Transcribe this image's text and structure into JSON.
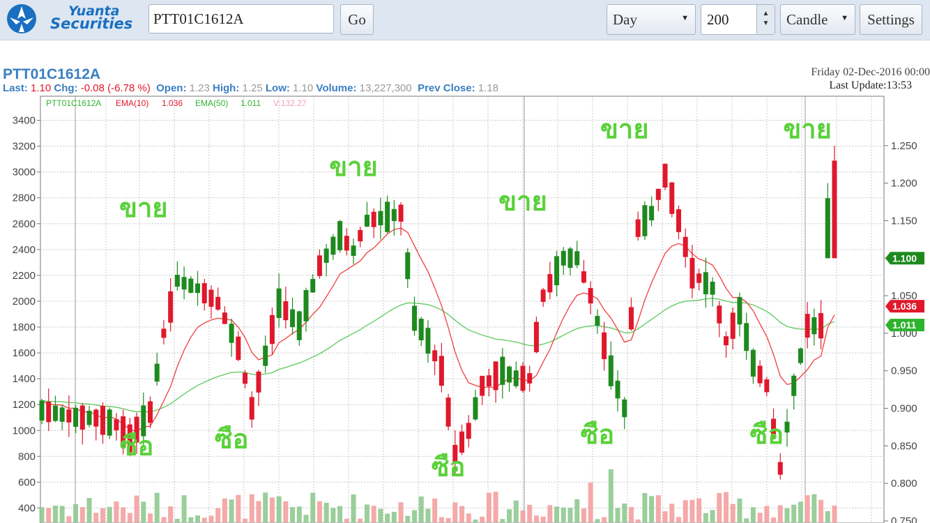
{
  "toolbar": {
    "logo_line1": "Yuanta",
    "logo_line2": "Securities",
    "symbol_value": "PTT01C1612A",
    "go_label": "Go",
    "period_value": "Day",
    "bars_value": "200",
    "chart_type_value": "Candle",
    "settings_label": "Settings",
    "brand_color": "#1a6fc0"
  },
  "header": {
    "symbol": "PTT01C1612A",
    "last_label": "Last:",
    "last_value": "1.10",
    "chg_label": "Chg:",
    "chg_value": "-0.08 (-6.78 %)",
    "open_label": "Open:",
    "open_value": "1.23",
    "high_label": "High:",
    "high_value": "1.25",
    "low_label": "Low:",
    "low_value": "1.10",
    "volume_label": "Volume:",
    "volume_value": "13,227,300",
    "prev_label": "Prev Close:",
    "prev_value": "1.18",
    "date": "Friday 02-Dec-2016 00:00",
    "last_update": "Last Update:13:53"
  },
  "chart_data": {
    "type": "candlestick",
    "legend": {
      "symbol": "PTT01C1612A",
      "ema10_label": "EMA(10)",
      "ema10_value": "1.036",
      "ema50_label": "EMA(50)",
      "ema50_value": "1.011",
      "vol_label": "V:132.27"
    },
    "left_axis": {
      "ticks": [
        "3400",
        "3200",
        "3000",
        "2800",
        "2600",
        "2400",
        "2200",
        "2000",
        "1800",
        "1600",
        "1400",
        "1200",
        "1000",
        "800",
        "600",
        "400"
      ]
    },
    "right_axis": {
      "ticks": [
        "1.250",
        "1.200",
        "1.150",
        "1.100",
        "1.050",
        "1.000",
        "0.950",
        "0.900",
        "0.850",
        "0.800",
        "0.750"
      ],
      "ylim": [
        0.75,
        1.3
      ]
    },
    "price_labels": [
      {
        "text": "1.100",
        "value": 1.1,
        "color": "#1e8a1e"
      },
      {
        "text": "1.036",
        "value": 1.036,
        "color": "#e0182c"
      },
      {
        "text": "1.011",
        "value": 1.011,
        "color": "#2fb32f"
      }
    ],
    "left_ylim": [
      300,
      3500
    ],
    "annotations": [
      {
        "text": "ขาย",
        "candle": 15,
        "price": 1.155
      },
      {
        "text": "ขาย",
        "candle": 46,
        "price": 1.21
      },
      {
        "text": "ขาย",
        "candle": 71,
        "price": 1.164
      },
      {
        "text": "ขาย",
        "candle": 86,
        "price": 1.26
      },
      {
        "text": "ขาย",
        "candle": 113,
        "price": 1.26
      },
      {
        "text": "ซือ",
        "candle": 14,
        "price": 0.838
      },
      {
        "text": "ซือ",
        "candle": 28,
        "price": 0.847
      },
      {
        "text": "ซือ",
        "candle": 60,
        "price": 0.81
      },
      {
        "text": "ซือ",
        "candle": 82,
        "price": 0.853
      },
      {
        "text": "ซือ",
        "candle": 107,
        "price": 0.853
      }
    ],
    "colors": {
      "up": "#1e8a1e",
      "down": "#e0182c",
      "ema10": "#f04a4a",
      "ema50": "#66cc66",
      "vol_up": "#8fc98f",
      "vol_down": "#f4a0a0",
      "annotation": "#5ad13a"
    }
  }
}
